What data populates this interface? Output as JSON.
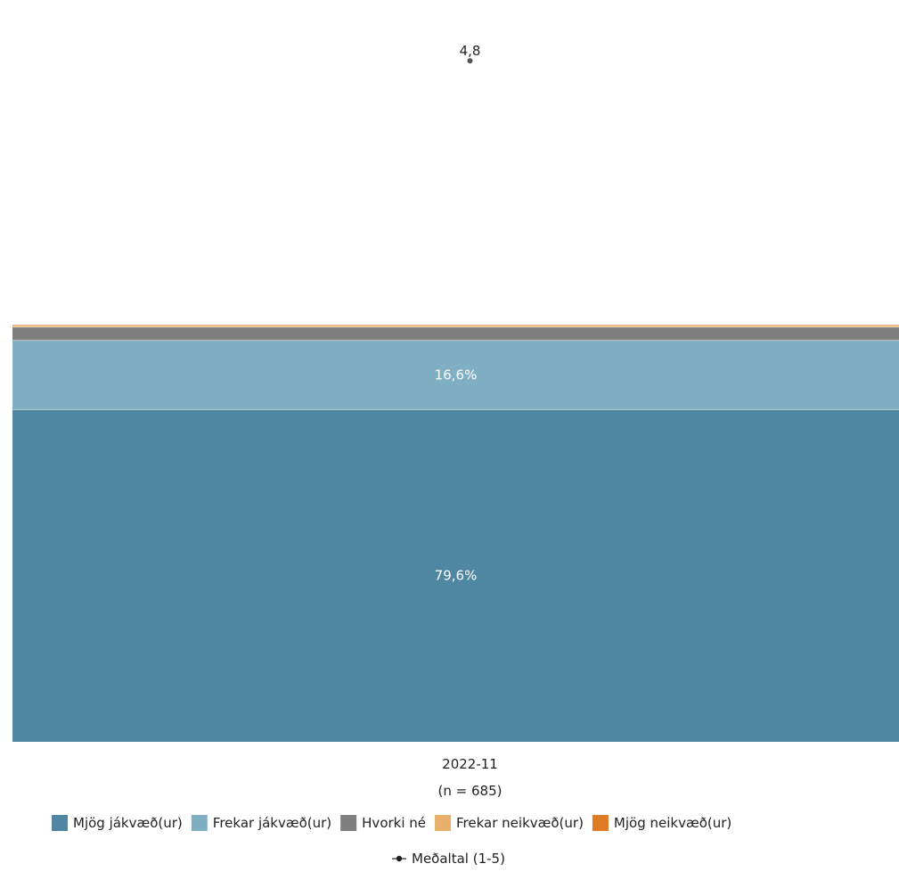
{
  "chart_data": {
    "type": "bar",
    "stacked": true,
    "categories": [
      "2022-11"
    ],
    "category_counts": [
      "(n = 685)"
    ],
    "ylim": [
      0,
      100
    ],
    "series": [
      {
        "name": "Mjög jákvæð(ur)",
        "values": [
          79.6
        ],
        "label": "79,6%",
        "color": "#4f87a2"
      },
      {
        "name": "Frekar jákvæð(ur)",
        "values": [
          16.6
        ],
        "label": "16,6%",
        "color": "#80afc3"
      },
      {
        "name": "Hvorki né",
        "values": [
          3.2
        ],
        "label": "",
        "color": "#7f7f7f"
      },
      {
        "name": "Frekar neikvæð(ur)",
        "values": [
          0.5
        ],
        "label": "",
        "color": "#e8b06a"
      },
      {
        "name": "Mjög neikvæð(ur)",
        "values": [
          0.1
        ],
        "label": "",
        "color": "#e07b25"
      }
    ],
    "mean": {
      "name": "Meðaltal (1-5)",
      "values": [
        4.8
      ],
      "label": "4,8",
      "range": [
        1,
        5
      ],
      "color": "#555555"
    },
    "legend_position": "bottom-center",
    "grid": false
  }
}
